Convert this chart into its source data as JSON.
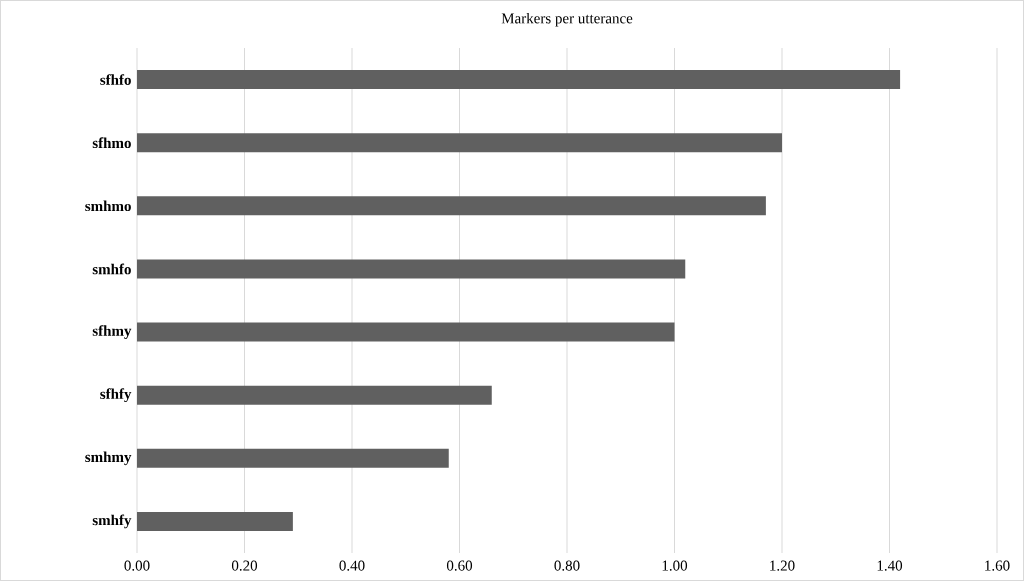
{
  "chart_data": {
    "type": "bar",
    "orientation": "horizontal",
    "title": "Markers per utterance",
    "categories": [
      "sfhfo",
      "sfhmo",
      "smhmo",
      "smhfo",
      "sfhmy",
      "sfhfy",
      "smhmy",
      "smhfy"
    ],
    "values": [
      1.42,
      1.2,
      1.17,
      1.02,
      1.0,
      0.66,
      0.58,
      0.29
    ],
    "color": "#606060",
    "xlim": [
      0,
      1.6
    ],
    "xticks": [
      {
        "value": 0,
        "label": "0.00"
      },
      {
        "value": 0.2,
        "label": "0.20"
      },
      {
        "value": 0.4,
        "label": "0.40"
      },
      {
        "value": 0.6,
        "label": "0.60"
      },
      {
        "value": 0.8,
        "label": "0.80"
      },
      {
        "value": 1.0,
        "label": "1.00"
      },
      {
        "value": 1.2,
        "label": "1.20"
      },
      {
        "value": 1.4,
        "label": "1.40"
      },
      {
        "value": 1.6,
        "label": "1.60"
      }
    ],
    "grid": "x"
  }
}
